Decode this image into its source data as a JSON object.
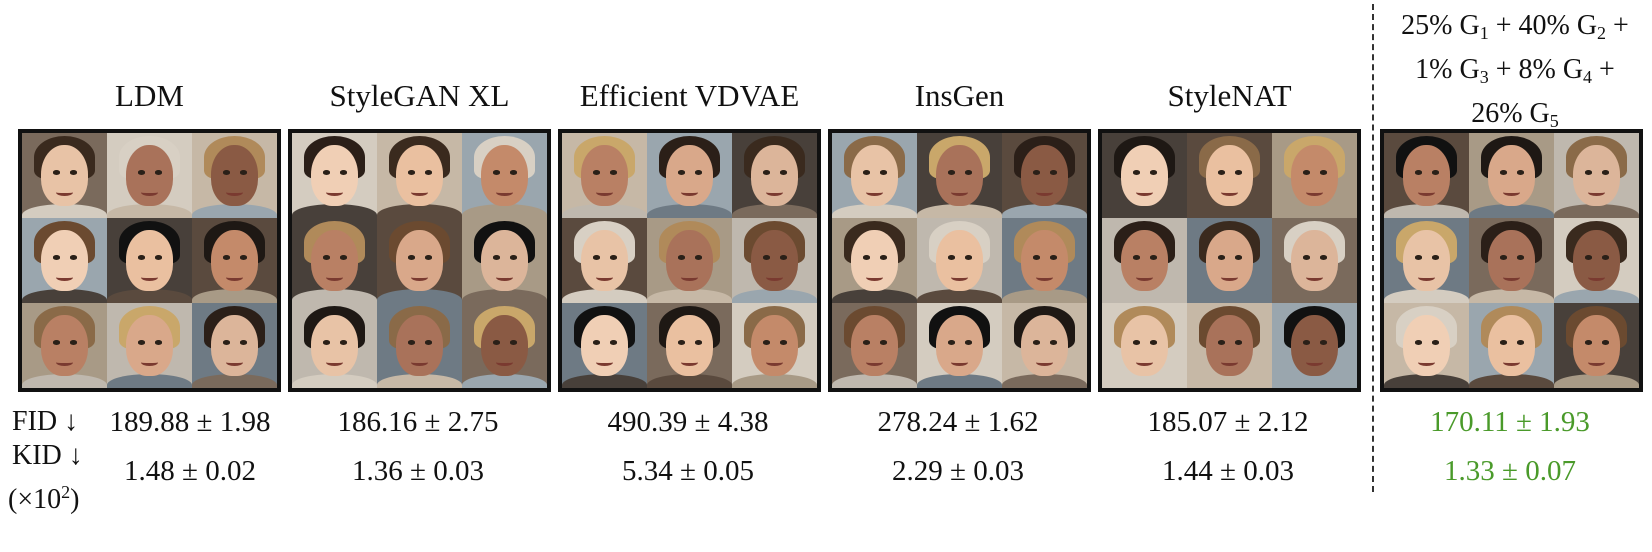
{
  "methods": [
    {
      "name": "LDM",
      "fid": "189.88 ± 1.98",
      "kid": "1.48 ± 0.02"
    },
    {
      "name": "StyleGAN XL",
      "fid": "186.16 ± 2.75",
      "kid": "1.36 ± 0.03"
    },
    {
      "name": "Efficient VDVAE",
      "fid": "490.39 ± 4.38",
      "kid": "5.34 ± 0.05"
    },
    {
      "name": "InsGen",
      "fid": "278.24 ± 1.62",
      "kid": "2.29 ± 0.03"
    },
    {
      "name": "StyleNAT",
      "fid": "185.07 ± 2.12",
      "kid": "1.44 ± 0.03"
    }
  ],
  "combination": {
    "line1": {
      "p1": "25% G",
      "s1": "1",
      "p2": " + 40% G",
      "s2": "2",
      "p3": " +"
    },
    "line2": {
      "p1": "1% G",
      "s1": "3",
      "p2": " + 8% G",
      "s2": "4",
      "p3": " +"
    },
    "line3": {
      "p1": "26% G",
      "s1": "5"
    },
    "fid": "170.11 ± 1.93",
    "kid": "1.33 ± 0.07",
    "highlight_color": "#4a9a2a"
  },
  "labels": {
    "fid": "FID ↓",
    "kid": "KID ↓",
    "scale_prefix": "(×10",
    "scale_exp": "2",
    "scale_suffix": ")"
  }
}
